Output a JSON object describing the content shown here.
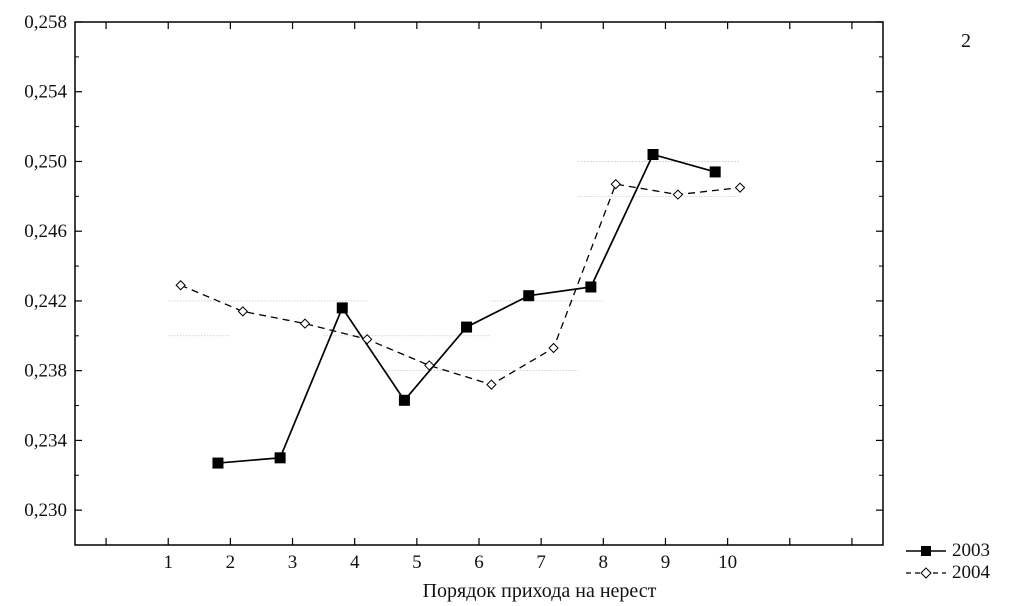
{
  "panel_label": "2",
  "chart_data": {
    "type": "line",
    "title": "",
    "xlabel": "Порядок прихода на нерест",
    "ylabel": "",
    "categories": [
      "1",
      "2",
      "3",
      "4",
      "5",
      "6",
      "7",
      "8",
      "9",
      "10"
    ],
    "xlim": [
      -0.5,
      12.5
    ],
    "ylim": [
      0.228,
      0.258
    ],
    "yticks": [
      "0,230",
      "0,234",
      "0,238",
      "0,242",
      "0,246",
      "0,250",
      "0,254",
      "0,258"
    ],
    "ytick_values": [
      0.23,
      0.234,
      0.238,
      0.242,
      0.246,
      0.25,
      0.254,
      0.258
    ],
    "series": [
      {
        "name": "2003",
        "style": "solid",
        "marker": "filled-square",
        "color": "#000000",
        "x": [
          1.8,
          2.8,
          3.8,
          4.8,
          5.8,
          6.8,
          7.8,
          8.8,
          9.8
        ],
        "y": [
          0.2327,
          0.233,
          0.2416,
          0.2363,
          0.2405,
          0.2423,
          0.2428,
          0.2504,
          0.2494
        ]
      },
      {
        "name": "2004",
        "style": "dashed",
        "marker": "open-diamond",
        "color": "#000000",
        "x": [
          1.2,
          2.2,
          3.2,
          4.2,
          5.2,
          6.2,
          7.2,
          8.2,
          9.2,
          10.2
        ],
        "y": [
          0.2429,
          0.2414,
          0.2407,
          0.2398,
          0.2383,
          0.2372,
          0.2393,
          0.2487,
          0.2481,
          0.2485
        ]
      }
    ],
    "grid": false
  }
}
